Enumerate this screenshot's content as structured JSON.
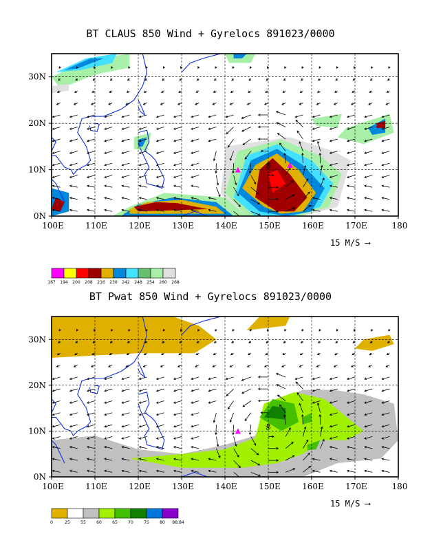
{
  "chart_data": [
    {
      "type": "heatmap",
      "title": "BT CLAUS 850 Wind + Gyrelocs 891023/0000",
      "x_ticks": [
        "100E",
        "110E",
        "120E",
        "130E",
        "140E",
        "150E",
        "160E",
        "170E",
        "180"
      ],
      "y_ticks": [
        "0N",
        "10N",
        "20N",
        "30N"
      ],
      "xlim": [
        100,
        180
      ],
      "ylim": [
        0,
        35
      ],
      "grid": true,
      "vector_reference": "15 M/S",
      "colorbar": {
        "labels": [
          "167",
          "194",
          "200",
          "208",
          "216",
          "230",
          "242",
          "248",
          "254",
          "260",
          "268"
        ],
        "colors": [
          "#ff00ff",
          "#ffff00",
          "#ff0000",
          "#a00000",
          "#e0b000",
          "#0088dd",
          "#44e0ff",
          "#66c070",
          "#a8f0a8",
          "#e0e0e0"
        ]
      },
      "markers": [
        {
          "type": "triangle",
          "lon": 143,
          "lat": 10,
          "color": "#ff00ff"
        },
        {
          "type": "cyclone-symbol",
          "lon": 150,
          "lat": 11
        },
        {
          "type": "triangle",
          "lon": 155,
          "lat": 11,
          "color": "#ff00ff"
        }
      ]
    },
    {
      "type": "heatmap",
      "title": "BT Pwat 850 Wind + Gyrelocs 891023/0000",
      "x_ticks": [
        "100E",
        "110E",
        "120E",
        "130E",
        "140E",
        "150E",
        "160E",
        "170E",
        "180"
      ],
      "y_ticks": [
        "0N",
        "10N",
        "20N",
        "30N"
      ],
      "xlim": [
        100,
        180
      ],
      "ylim": [
        0,
        35
      ],
      "grid": true,
      "vector_reference": "15 M/S",
      "colorbar": {
        "labels": [
          "0",
          "25",
          "55",
          "60",
          "65",
          "70",
          "75",
          "80",
          "88.84"
        ],
        "colors": [
          "#e0b000",
          "#ffffff",
          "#c0c0c0",
          "#a0f000",
          "#44c000",
          "#108000",
          "#0077dd",
          "#8800cc"
        ]
      },
      "markers": [
        {
          "type": "triangle",
          "lon": 143,
          "lat": 10,
          "color": "#ff00ff"
        },
        {
          "type": "cyclone-symbol",
          "lon": 150,
          "lat": 11
        }
      ]
    }
  ]
}
